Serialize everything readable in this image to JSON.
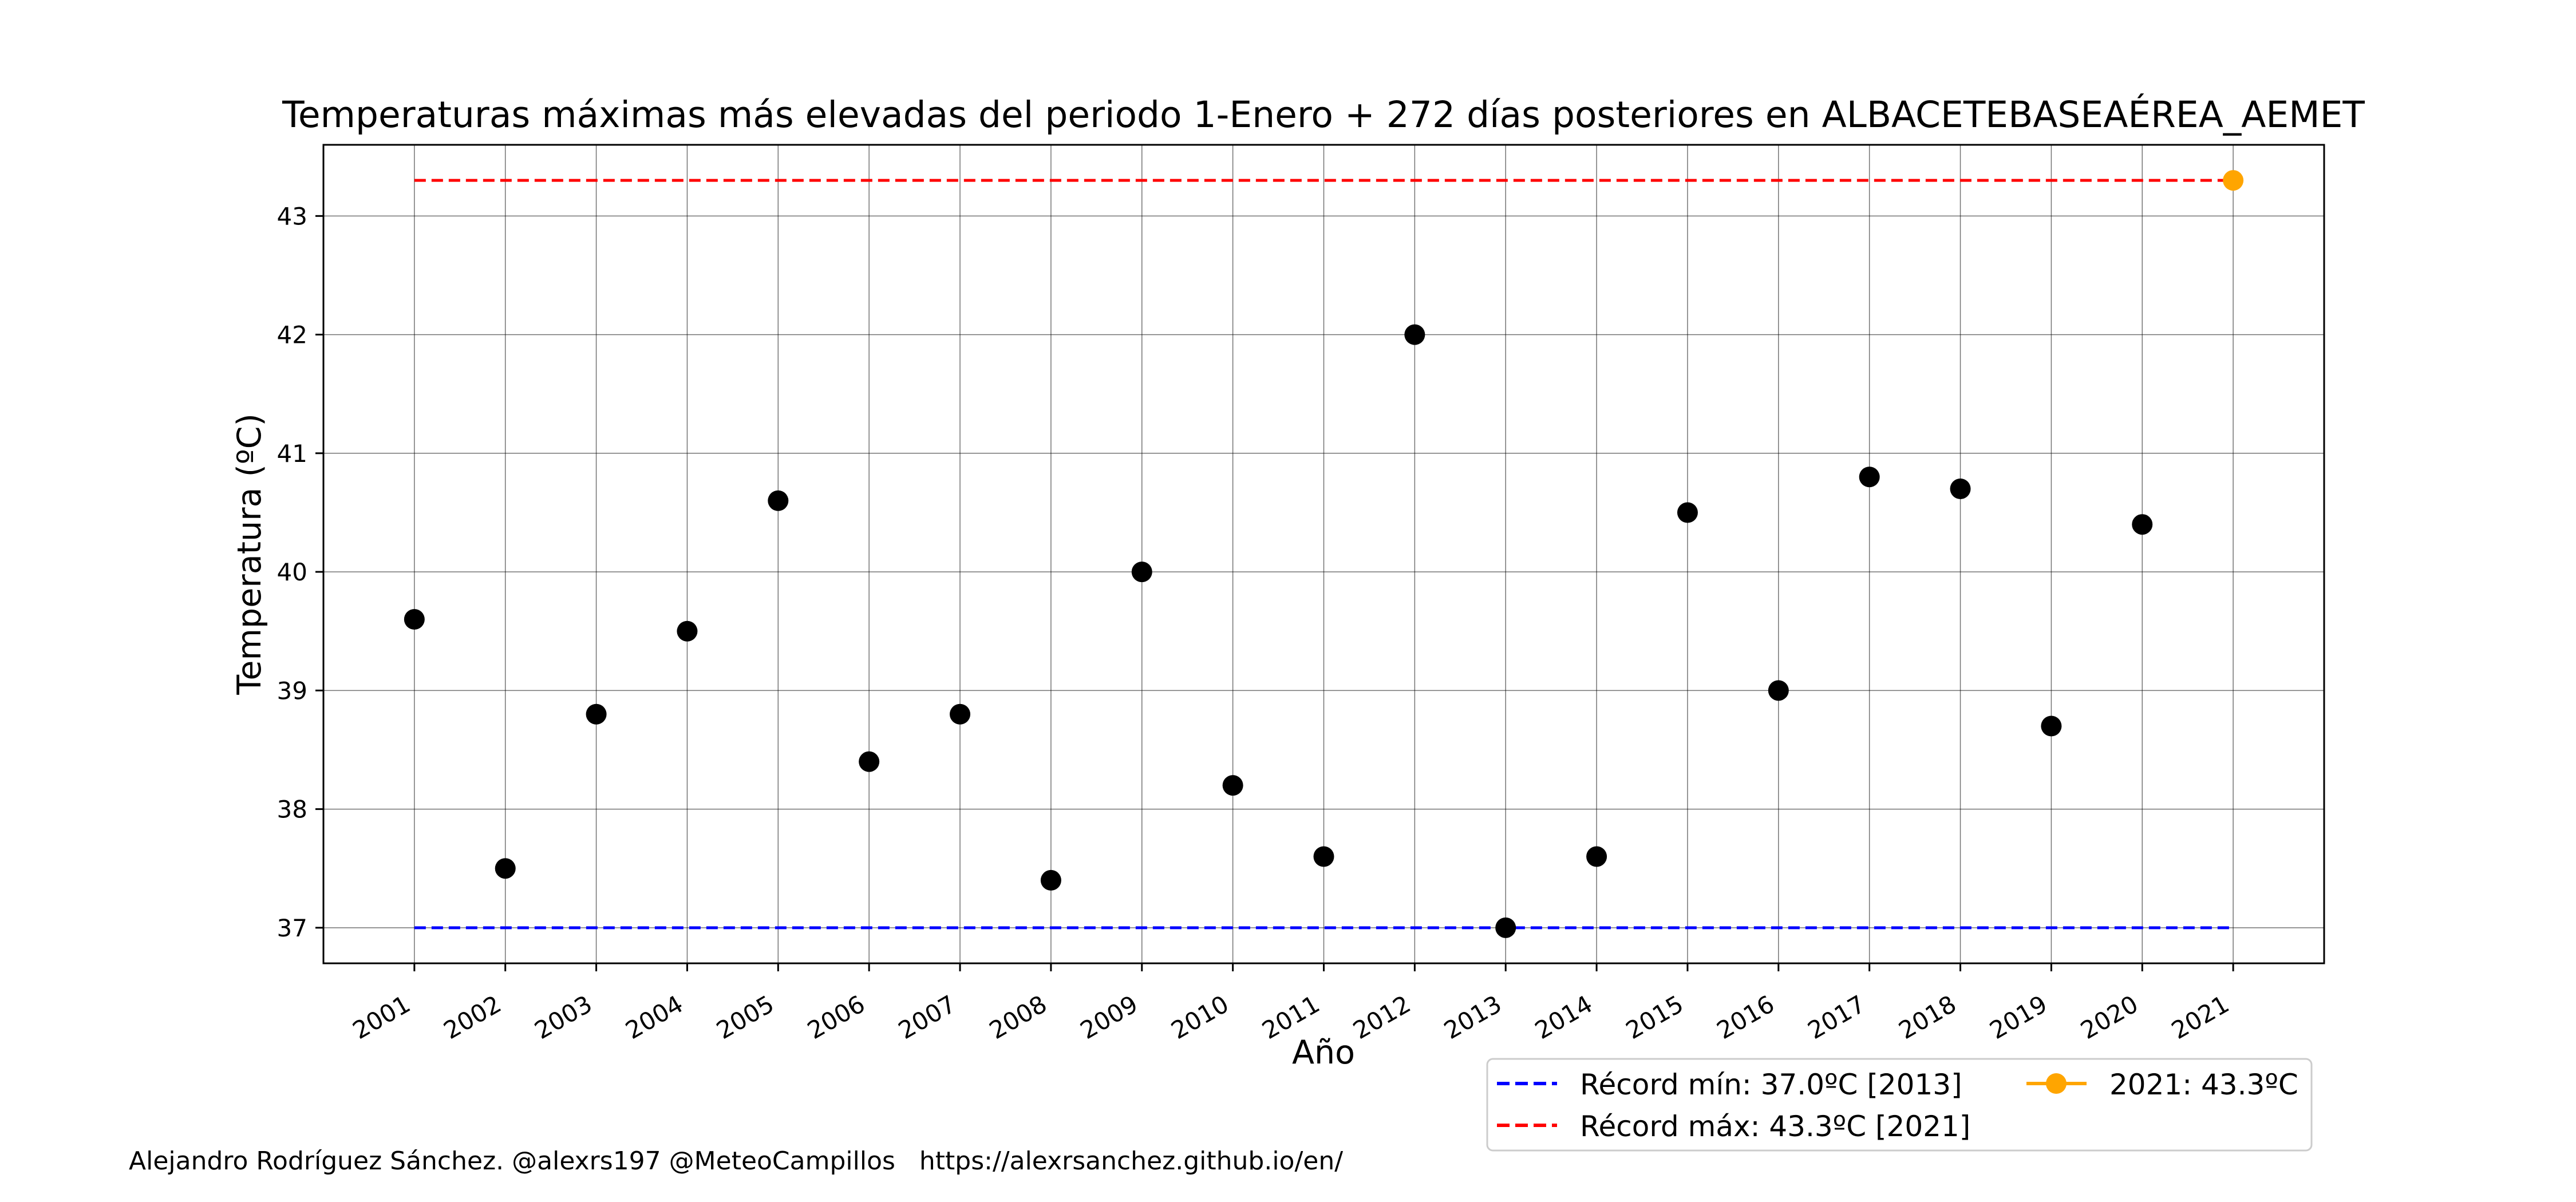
{
  "chart_data": {
    "type": "scatter",
    "title": "Temperaturas máximas más elevadas del periodo 1-Enero + 272 días posteriores en ALBACETEBASEAÉREA_AEMET",
    "xlabel": "Año",
    "ylabel": "Temperatura (ºC)",
    "x": [
      2001,
      2002,
      2003,
      2004,
      2005,
      2006,
      2007,
      2008,
      2009,
      2010,
      2011,
      2012,
      2013,
      2014,
      2015,
      2016,
      2017,
      2018,
      2019,
      2020,
      2021
    ],
    "x_ticks": [
      "2001",
      "2002",
      "2003",
      "2004",
      "2005",
      "2006",
      "2007",
      "2008",
      "2009",
      "2010",
      "2011",
      "2012",
      "2013",
      "2014",
      "2015",
      "2016",
      "2017",
      "2018",
      "2019",
      "2020",
      "2021"
    ],
    "y_ticks": [
      37,
      38,
      39,
      40,
      41,
      42,
      43
    ],
    "xlim": [
      2000,
      2022
    ],
    "ylim": [
      36.7,
      43.6
    ],
    "grid": true,
    "series": [
      {
        "values": [
          39.6,
          37.5,
          38.8,
          39.5,
          40.6,
          38.4,
          38.8,
          37.4,
          40.0,
          38.2,
          37.6,
          42.0,
          37.0,
          37.6,
          40.5,
          39.0,
          40.8,
          40.7,
          38.7,
          40.4
        ],
        "x": [
          2001,
          2002,
          2003,
          2004,
          2005,
          2006,
          2007,
          2008,
          2009,
          2010,
          2011,
          2012,
          2013,
          2014,
          2015,
          2016,
          2017,
          2018,
          2019,
          2020
        ],
        "color": "#000000"
      },
      {
        "name": "2021: 43.3ºC",
        "x": [
          2021
        ],
        "values": [
          43.3
        ],
        "color": "#ffa500"
      }
    ],
    "reference_lines": [
      {
        "name": "Récord mín: 37.0ºC [2013]",
        "value": 37.0,
        "color": "#0000ff",
        "style": "dashed"
      },
      {
        "name": "Récord máx: 43.3ºC [2021]",
        "value": 43.3,
        "color": "#ff0000",
        "style": "dashed"
      }
    ],
    "legend_position": "bottom-right",
    "footer": "Alejandro Rodríguez Sánchez. @alexrs197 @MeteoCampillos   https://alexrsanchez.github.io/en/"
  }
}
